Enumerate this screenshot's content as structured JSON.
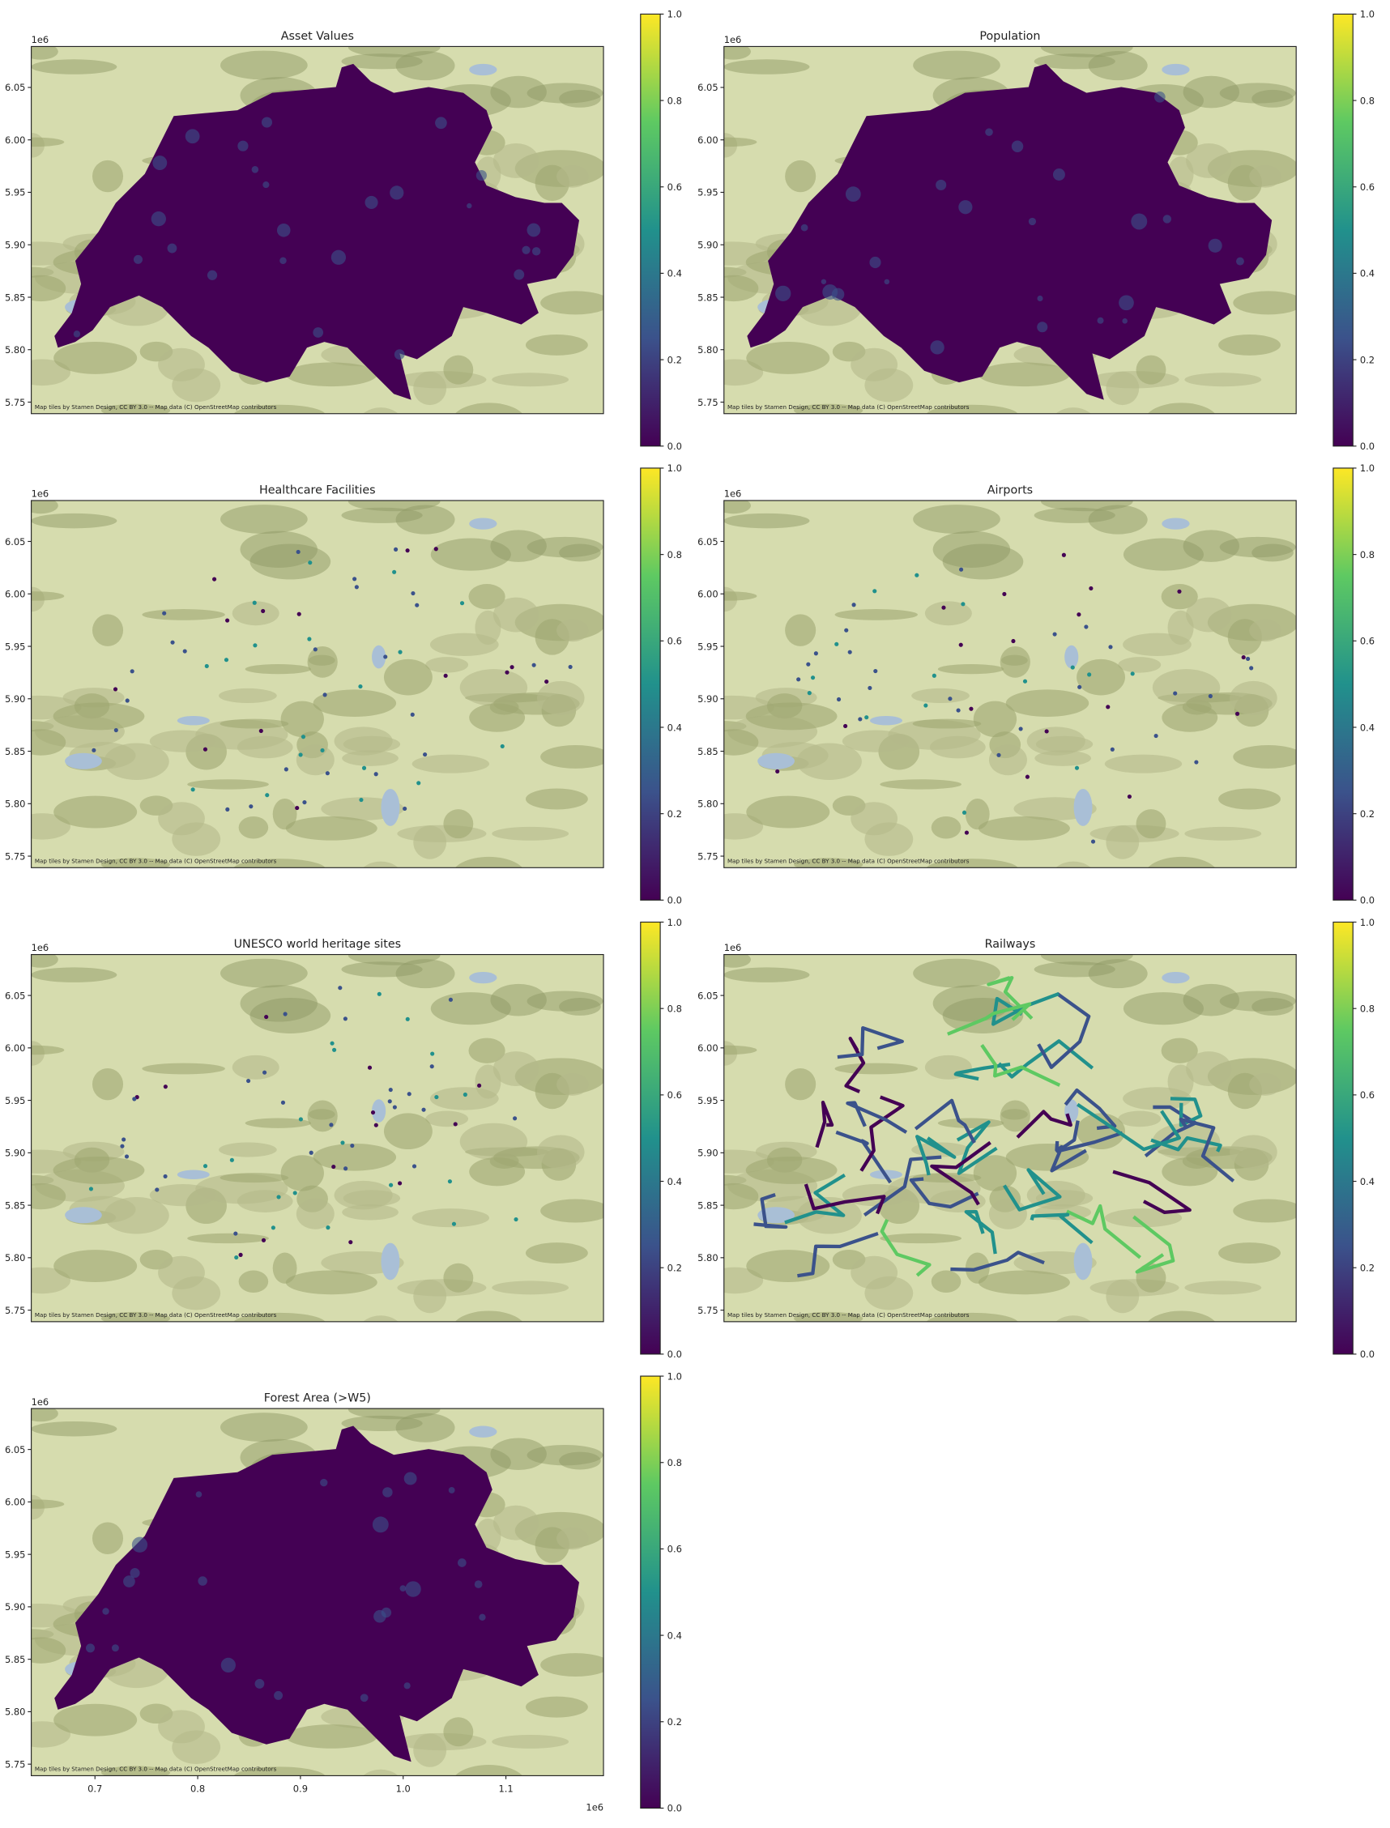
{
  "chart_data": [
    {
      "type": "map",
      "layer": "fill",
      "title": "Asset Values",
      "ylim": [
        5739000,
        6089000
      ],
      "yticks": [
        {
          "value": 5750000,
          "label": "5.75"
        },
        {
          "value": 5800000,
          "label": "5.80"
        },
        {
          "value": 5850000,
          "label": "5.85"
        },
        {
          "value": 5900000,
          "label": "5.90"
        },
        {
          "value": 5950000,
          "label": "5.95"
        },
        {
          "value": 6000000,
          "label": "6.00"
        },
        {
          "value": 6050000,
          "label": "6.05"
        }
      ],
      "y_offset": "1e6",
      "attribution": "Map tiles by Stamen Design, CC BY 3.0 -- Map data (C) OpenStreetMap contributors",
      "colorbar": {
        "lim": [
          0,
          1
        ],
        "ticks": [
          {
            "value": 0,
            "label": "0.0"
          },
          0.2,
          0.4,
          0.6,
          0.8,
          {
            "value": 1,
            "label": "1.0"
          }
        ],
        "colors": [
          "#440154",
          "#3b528b",
          "#21918c",
          "#5ec962",
          "#fde725"
        ]
      }
    },
    {
      "type": "map",
      "layer": "fill",
      "title": "Population",
      "ylim": [
        5739000,
        6089000
      ],
      "yticks": [
        {
          "value": 5750000,
          "label": "5.75"
        },
        {
          "value": 5800000,
          "label": "5.80"
        },
        {
          "value": 5850000,
          "label": "5.85"
        },
        {
          "value": 5900000,
          "label": "5.90"
        },
        {
          "value": 5950000,
          "label": "5.95"
        },
        {
          "value": 6000000,
          "label": "6.00"
        },
        {
          "value": 6050000,
          "label": "6.05"
        }
      ],
      "y_offset": "1e6",
      "attribution": "Map tiles by Stamen Design, CC BY 3.0 -- Map data (C) OpenStreetMap contributors",
      "colorbar": {
        "lim": [
          0,
          1
        ],
        "ticks": [
          {
            "value": 0,
            "label": "0.0"
          },
          0.2,
          0.4,
          0.6,
          0.8,
          {
            "value": 1,
            "label": "1.0"
          }
        ],
        "colors": [
          "#440154",
          "#3b528b",
          "#21918c",
          "#5ec962",
          "#fde725"
        ]
      }
    },
    {
      "type": "map",
      "layer": "points",
      "title": "Healthcare Facilities",
      "ylim": [
        5739000,
        6089000
      ],
      "yticks": [
        {
          "value": 5750000,
          "label": "5.75"
        },
        {
          "value": 5800000,
          "label": "5.80"
        },
        {
          "value": 5850000,
          "label": "5.85"
        },
        {
          "value": 5900000,
          "label": "5.90"
        },
        {
          "value": 5950000,
          "label": "5.95"
        },
        {
          "value": 6000000,
          "label": "6.00"
        },
        {
          "value": 6050000,
          "label": "6.05"
        }
      ],
      "y_offset": "1e6",
      "attribution": "Map tiles by Stamen Design, CC BY 3.0 -- Map data (C) OpenStreetMap contributors",
      "colorbar": {
        "lim": [
          0,
          1
        ],
        "ticks": [
          {
            "value": 0,
            "label": "0.0"
          },
          0.2,
          0.4,
          0.6,
          0.8,
          {
            "value": 1,
            "label": "1.0"
          }
        ],
        "colors": [
          "#440154",
          "#3b528b",
          "#21918c",
          "#5ec962",
          "#fde725"
        ]
      }
    },
    {
      "type": "map",
      "layer": "points",
      "title": "Airports",
      "ylim": [
        5739000,
        6089000
      ],
      "yticks": [
        {
          "value": 5750000,
          "label": "5.75"
        },
        {
          "value": 5800000,
          "label": "5.80"
        },
        {
          "value": 5850000,
          "label": "5.85"
        },
        {
          "value": 5900000,
          "label": "5.90"
        },
        {
          "value": 5950000,
          "label": "5.95"
        },
        {
          "value": 6000000,
          "label": "6.00"
        },
        {
          "value": 6050000,
          "label": "6.05"
        }
      ],
      "y_offset": "1e6",
      "attribution": "Map tiles by Stamen Design, CC BY 3.0 -- Map data (C) OpenStreetMap contributors",
      "colorbar": {
        "lim": [
          0,
          1
        ],
        "ticks": [
          {
            "value": 0,
            "label": "0.0"
          },
          0.2,
          0.4,
          0.6,
          0.8,
          {
            "value": 1,
            "label": "1.0"
          }
        ],
        "colors": [
          "#440154",
          "#3b528b",
          "#21918c",
          "#5ec962",
          "#fde725"
        ]
      }
    },
    {
      "type": "map",
      "layer": "points",
      "title": "UNESCO world heritage sites",
      "ylim": [
        5739000,
        6089000
      ],
      "yticks": [
        {
          "value": 5750000,
          "label": "5.75"
        },
        {
          "value": 5800000,
          "label": "5.80"
        },
        {
          "value": 5850000,
          "label": "5.85"
        },
        {
          "value": 5900000,
          "label": "5.90"
        },
        {
          "value": 5950000,
          "label": "5.95"
        },
        {
          "value": 6000000,
          "label": "6.00"
        },
        {
          "value": 6050000,
          "label": "6.05"
        }
      ],
      "y_offset": "1e6",
      "attribution": "Map tiles by Stamen Design, CC BY 3.0 -- Map data (C) OpenStreetMap contributors",
      "colorbar": {
        "lim": [
          0,
          1
        ],
        "ticks": [
          {
            "value": 0,
            "label": "0.0"
          },
          0.2,
          0.4,
          0.6,
          0.8,
          {
            "value": 1,
            "label": "1.0"
          }
        ],
        "colors": [
          "#440154",
          "#3b528b",
          "#21918c",
          "#5ec962",
          "#fde725"
        ]
      }
    },
    {
      "type": "map",
      "layer": "lines",
      "title": "Railways",
      "ylim": [
        5739000,
        6089000
      ],
      "yticks": [
        {
          "value": 5750000,
          "label": "5.75"
        },
        {
          "value": 5800000,
          "label": "5.80"
        },
        {
          "value": 5850000,
          "label": "5.85"
        },
        {
          "value": 5900000,
          "label": "5.90"
        },
        {
          "value": 5950000,
          "label": "5.95"
        },
        {
          "value": 6000000,
          "label": "6.00"
        },
        {
          "value": 6050000,
          "label": "6.05"
        }
      ],
      "y_offset": "1e6",
      "attribution": "Map tiles by Stamen Design, CC BY 3.0 -- Map data (C) OpenStreetMap contributors",
      "colorbar": {
        "lim": [
          0,
          1
        ],
        "ticks": [
          {
            "value": 0,
            "label": "0.0"
          },
          0.2,
          0.4,
          0.6,
          0.8,
          {
            "value": 1,
            "label": "1.0"
          }
        ],
        "colors": [
          "#440154",
          "#3b528b",
          "#21918c",
          "#5ec962",
          "#fde725"
        ]
      }
    },
    {
      "type": "map",
      "layer": "fill",
      "title": "Forest Area (>W5)",
      "xlim": [
        638000,
        1195000
      ],
      "xticks": [
        {
          "value": 700000,
          "label": "0.7"
        },
        {
          "value": 800000,
          "label": "0.8"
        },
        {
          "value": 900000,
          "label": "0.9"
        },
        {
          "value": 1000000,
          "label": "1.0"
        },
        {
          "value": 1100000,
          "label": "1.1"
        }
      ],
      "x_offset": "1e6",
      "ylim": [
        5739000,
        6089000
      ],
      "yticks": [
        {
          "value": 5750000,
          "label": "5.75"
        },
        {
          "value": 5800000,
          "label": "5.80"
        },
        {
          "value": 5850000,
          "label": "5.85"
        },
        {
          "value": 5900000,
          "label": "5.90"
        },
        {
          "value": 5950000,
          "label": "5.95"
        },
        {
          "value": 6000000,
          "label": "6.00"
        },
        {
          "value": 6050000,
          "label": "6.05"
        }
      ],
      "y_offset": "1e6",
      "attribution": "Map tiles by Stamen Design, CC BY 3.0 -- Map data (C) OpenStreetMap contributors",
      "colorbar": {
        "lim": [
          0,
          1
        ],
        "ticks": [
          {
            "value": 0,
            "label": "0.0"
          },
          0.2,
          0.4,
          0.6,
          0.8,
          {
            "value": 1,
            "label": "1.0"
          }
        ],
        "colors": [
          "#440154",
          "#3b528b",
          "#21918c",
          "#5ec962",
          "#fde725"
        ]
      }
    }
  ]
}
